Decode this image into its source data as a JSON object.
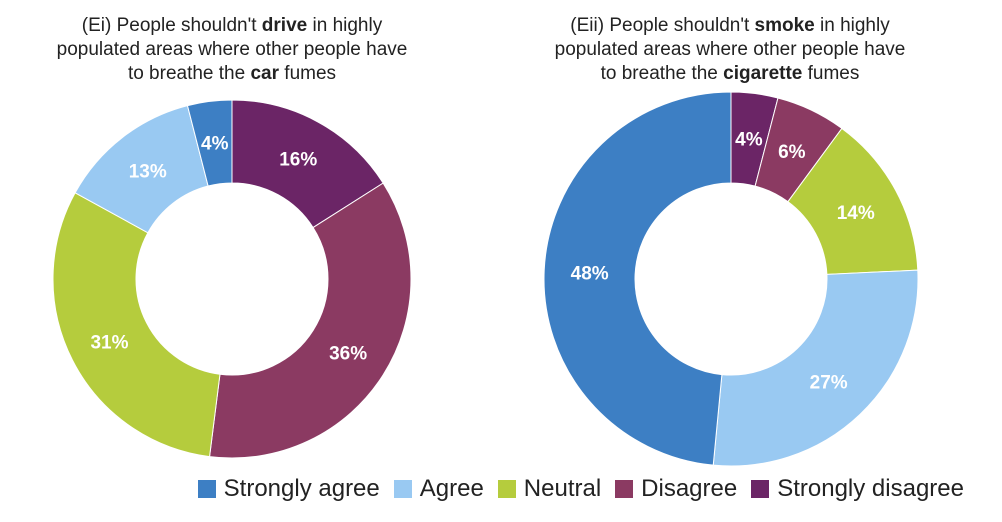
{
  "chart_data": [
    {
      "type": "pie",
      "title_parts": {
        "line1_pre": "(Ei) People shouldn't ",
        "line1_bold": "drive",
        "line1_post": " in highly",
        "line2": "populated areas where other people have",
        "line3_pre": "to breathe the ",
        "line3_bold": "car",
        "line3_post": " fumes"
      },
      "categories": [
        "Strongly agree",
        "Agree",
        "Neutral",
        "Disagree",
        "Strongly disagree"
      ],
      "values": [
        4,
        13,
        31,
        36,
        16
      ],
      "labels": [
        "4%",
        "13%",
        "31%",
        "36%",
        "16%"
      ]
    },
    {
      "type": "pie",
      "title_parts": {
        "line1_pre": "(Eii) People shouldn't ",
        "line1_bold": "smoke",
        "line1_post": " in highly",
        "line2": "populated areas where other people have",
        "line3_pre": "to breathe the ",
        "line3_bold": "cigarette",
        "line3_post": " fumes"
      },
      "categories": [
        "Strongly agree",
        "Agree",
        "Neutral",
        "Disagree",
        "Strongly disagree"
      ],
      "values": [
        48,
        27,
        14,
        6,
        4
      ],
      "labels": [
        "48%",
        "27%",
        "14%",
        "6%",
        "4%"
      ]
    }
  ],
  "legend": {
    "placement": "bottom",
    "items": [
      {
        "label": "Strongly agree",
        "color": "#3d7fc4"
      },
      {
        "label": "Agree",
        "color": "#99c9f2"
      },
      {
        "label": "Neutral",
        "color": "#b5cc3d"
      },
      {
        "label": "Disagree",
        "color": "#8b3a62"
      },
      {
        "label": "Strongly disagree",
        "color": "#6b2566"
      }
    ]
  },
  "colors": [
    "#3d7fc4",
    "#99c9f2",
    "#b5cc3d",
    "#8b3a62",
    "#6b2566"
  ],
  "slice_order_clockwise_from_top": [
    [
      "Strongly disagree",
      "Disagree",
      "Neutral",
      "Agree",
      "Strongly agree"
    ],
    [
      "Strongly disagree",
      "Disagree",
      "Neutral",
      "Agree",
      "Strongly agree"
    ]
  ]
}
